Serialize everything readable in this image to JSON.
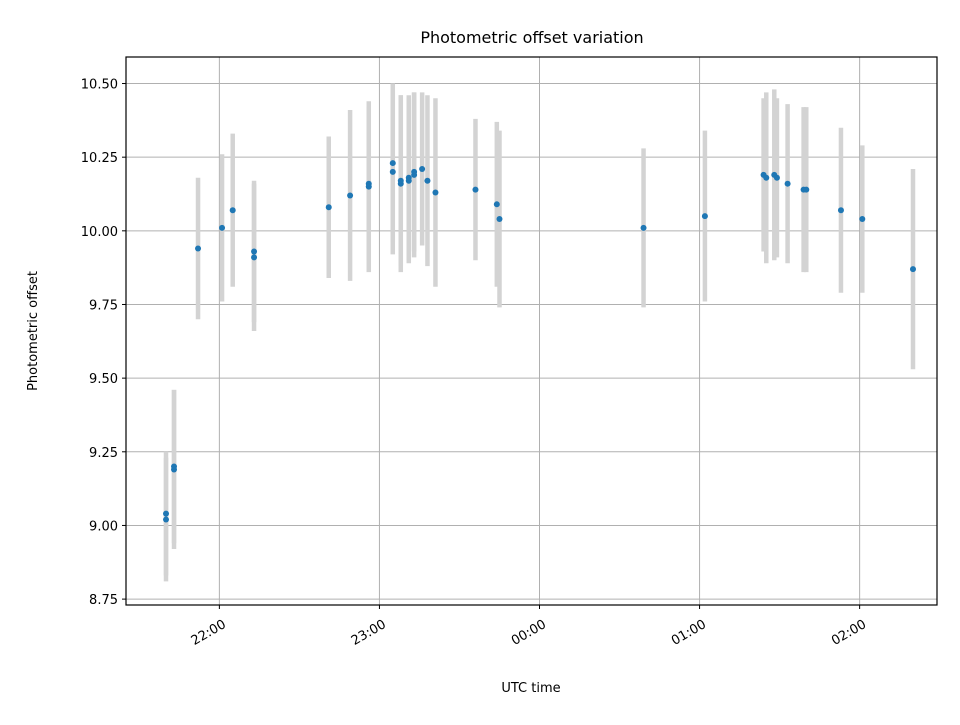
{
  "chart_data": {
    "type": "scatter",
    "title": "Photometric offset variation",
    "xlabel": "UTC time",
    "ylabel": "Photometric offset",
    "x_unit": "UTC time (HH:MM), points after 00:00 belong to the following day",
    "xlim": [
      "21:25",
      "02:29"
    ],
    "ylim": [
      8.73,
      10.59
    ],
    "x_ticks": [
      "22:00",
      "23:00",
      "00:00",
      "01:00",
      "02:00"
    ],
    "y_ticks": [
      "8.75",
      "9.00",
      "9.25",
      "9.50",
      "9.75",
      "10.00",
      "10.25",
      "10.50"
    ],
    "grid": true,
    "colors": {
      "point": "#1f77b4",
      "errorbar": "#d3d3d3"
    },
    "points": [
      {
        "x": "21:40",
        "y": 9.04,
        "err": 0.21
      },
      {
        "x": "21:40",
        "y": 9.02,
        "err": 0.21
      },
      {
        "x": "21:43",
        "y": 9.19,
        "err": 0.27
      },
      {
        "x": "21:43",
        "y": 9.2,
        "err": 0.26
      },
      {
        "x": "21:52",
        "y": 9.94,
        "err": 0.24
      },
      {
        "x": "22:01",
        "y": 10.01,
        "err": 0.25
      },
      {
        "x": "22:05",
        "y": 10.07,
        "err": 0.26
      },
      {
        "x": "22:13",
        "y": 9.93,
        "err": 0.24
      },
      {
        "x": "22:13",
        "y": 9.91,
        "err": 0.25
      },
      {
        "x": "22:41",
        "y": 10.08,
        "err": 0.24
      },
      {
        "x": "22:49",
        "y": 10.12,
        "err": 0.29
      },
      {
        "x": "22:56",
        "y": 10.15,
        "err": 0.29
      },
      {
        "x": "22:56",
        "y": 10.16,
        "err": 0.26
      },
      {
        "x": "23:05",
        "y": 10.23,
        "err": 0.27
      },
      {
        "x": "23:05",
        "y": 10.2,
        "err": 0.28
      },
      {
        "x": "23:08",
        "y": 10.16,
        "err": 0.3
      },
      {
        "x": "23:08",
        "y": 10.17,
        "err": 0.29
      },
      {
        "x": "23:11",
        "y": 10.18,
        "err": 0.28
      },
      {
        "x": "23:11",
        "y": 10.17,
        "err": 0.28
      },
      {
        "x": "23:13",
        "y": 10.19,
        "err": 0.28
      },
      {
        "x": "23:13",
        "y": 10.2,
        "err": 0.27
      },
      {
        "x": "23:16",
        "y": 10.21,
        "err": 0.26
      },
      {
        "x": "23:18",
        "y": 10.17,
        "err": 0.29
      },
      {
        "x": "23:21",
        "y": 10.13,
        "err": 0.32
      },
      {
        "x": "23:36",
        "y": 10.14,
        "err": 0.24
      },
      {
        "x": "23:44",
        "y": 10.09,
        "err": 0.28
      },
      {
        "x": "23:45",
        "y": 10.04,
        "err": 0.3
      },
      {
        "x": "00:39",
        "y": 10.01,
        "err": 0.27
      },
      {
        "x": "01:02",
        "y": 10.05,
        "err": 0.29
      },
      {
        "x": "01:24",
        "y": 10.19,
        "err": 0.26
      },
      {
        "x": "01:25",
        "y": 10.18,
        "err": 0.29
      },
      {
        "x": "01:28",
        "y": 10.19,
        "err": 0.29
      },
      {
        "x": "01:29",
        "y": 10.18,
        "err": 0.27
      },
      {
        "x": "01:33",
        "y": 10.16,
        "err": 0.27
      },
      {
        "x": "01:39",
        "y": 10.14,
        "err": 0.28
      },
      {
        "x": "01:40",
        "y": 10.14,
        "err": 0.28
      },
      {
        "x": "01:53",
        "y": 10.07,
        "err": 0.28
      },
      {
        "x": "02:01",
        "y": 10.04,
        "err": 0.25
      },
      {
        "x": "02:20",
        "y": 9.87,
        "err": 0.34
      }
    ]
  }
}
